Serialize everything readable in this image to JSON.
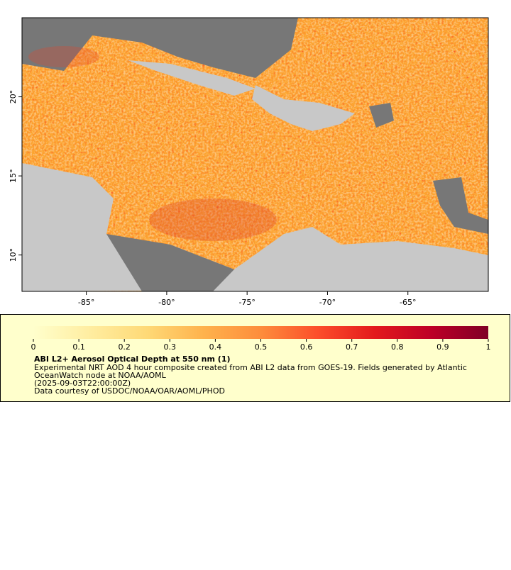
{
  "map": {
    "xlim": [
      -89,
      -60
    ],
    "ylim": [
      7.7,
      25
    ],
    "xticks": [
      {
        "value": -85,
        "label": "-85°"
      },
      {
        "value": -80,
        "label": "-80°"
      },
      {
        "value": -75,
        "label": "-75°"
      },
      {
        "value": -70,
        "label": "-70°"
      },
      {
        "value": -65,
        "label": "-65°"
      }
    ],
    "yticks": [
      {
        "value": 10,
        "label": "10°"
      },
      {
        "value": 15,
        "label": "15°"
      },
      {
        "value": 20,
        "label": "20°"
      }
    ]
  },
  "colorbar": {
    "range": [
      0,
      1
    ],
    "ticks": [
      0,
      0.1,
      0.2,
      0.3,
      0.4,
      0.5,
      0.6,
      0.7,
      0.8,
      0.9,
      1
    ],
    "colors": [
      "#ffffcc",
      "#ffeda0",
      "#fed976",
      "#feb24c",
      "#fd8d3c",
      "#fc4e2a",
      "#e31a1c",
      "#bd0026",
      "#800026"
    ]
  },
  "legend": {
    "title": "ABI L2+ Aerosol Optical Depth at 550 nm (1)",
    "lines": [
      "Experimental NRT AOD 4 hour composite created from ABI L2 data from GOES-19. Fields generated by Atlantic",
      "OceanWatch node at NOAA/AOML",
      "(2025-09-03T22:00:00Z)",
      "Data courtesy of USDOC/NOAA/OAR/AOML/PHOD"
    ]
  }
}
